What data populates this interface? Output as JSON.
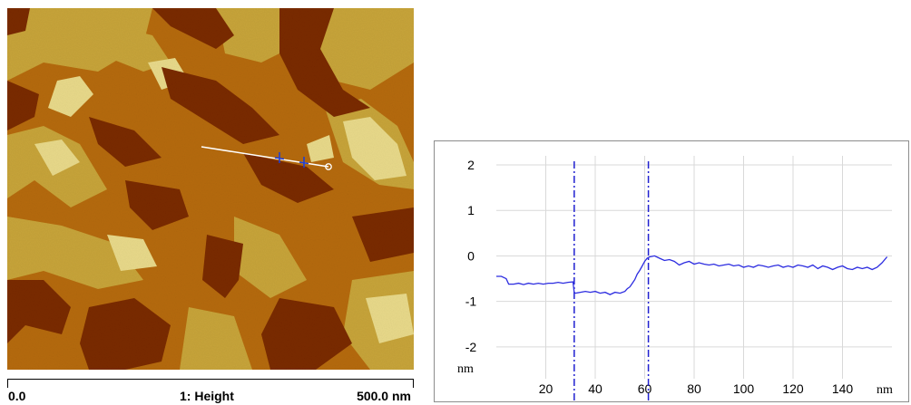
{
  "afm_image": {
    "colors": {
      "dark": "#7a2a02",
      "mid": "#b56a0c",
      "light": "#c7a43a",
      "highlight": "#e8d98a",
      "line": "#ffffff",
      "cursor": "#1f3fd6"
    }
  },
  "scale_bar": {
    "start_label": "0.0",
    "channel_label": "1: Height",
    "end_label": "500.0 nm"
  },
  "chart_data": {
    "type": "line",
    "title": "",
    "xlabel": "nm",
    "ylabel": "nm",
    "xlim": [
      0,
      160
    ],
    "ylim": [
      -2.7,
      2.2
    ],
    "x_ticks": [
      20,
      40,
      60,
      80,
      100,
      120,
      140
    ],
    "y_ticks": [
      2,
      1,
      0,
      -1,
      -2
    ],
    "grid": true,
    "line_color": "#2c2ce0",
    "cursor_color": "#2020d0",
    "cursors": [
      31.5,
      61.5
    ],
    "series": [
      {
        "x": [
          0,
          2,
          4,
          5,
          7,
          9,
          11,
          13,
          15,
          17,
          19,
          21,
          23,
          25,
          27,
          29,
          31,
          31.5,
          32,
          34,
          36,
          38,
          40,
          42,
          44,
          46,
          48,
          50,
          52,
          53,
          54,
          55,
          56,
          57,
          58,
          59,
          60,
          61,
          62,
          64,
          66,
          68,
          70,
          72,
          74,
          76,
          78,
          80,
          82,
          84,
          86,
          88,
          90,
          92,
          94,
          96,
          98,
          100,
          102,
          104,
          106,
          108,
          110,
          112,
          114,
          116,
          118,
          120,
          122,
          124,
          126,
          128,
          130,
          132,
          134,
          136,
          138,
          140,
          142,
          144,
          146,
          148,
          150,
          152,
          154,
          156,
          158
        ],
        "y": [
          -0.45,
          -0.45,
          -0.5,
          -0.62,
          -0.62,
          -0.6,
          -0.63,
          -0.6,
          -0.62,
          -0.6,
          -0.62,
          -0.6,
          -0.6,
          -0.58,
          -0.6,
          -0.58,
          -0.57,
          -0.8,
          -0.82,
          -0.8,
          -0.78,
          -0.8,
          -0.78,
          -0.82,
          -0.8,
          -0.85,
          -0.8,
          -0.82,
          -0.78,
          -0.72,
          -0.68,
          -0.6,
          -0.52,
          -0.4,
          -0.32,
          -0.22,
          -0.12,
          -0.05,
          -0.02,
          0.0,
          -0.05,
          -0.1,
          -0.08,
          -0.12,
          -0.2,
          -0.15,
          -0.12,
          -0.18,
          -0.15,
          -0.18,
          -0.2,
          -0.18,
          -0.22,
          -0.2,
          -0.18,
          -0.22,
          -0.2,
          -0.25,
          -0.22,
          -0.25,
          -0.2,
          -0.22,
          -0.25,
          -0.22,
          -0.2,
          -0.25,
          -0.22,
          -0.25,
          -0.2,
          -0.22,
          -0.25,
          -0.2,
          -0.28,
          -0.22,
          -0.25,
          -0.3,
          -0.25,
          -0.22,
          -0.28,
          -0.3,
          -0.25,
          -0.28,
          -0.25,
          -0.3,
          -0.25,
          -0.15,
          -0.02
        ]
      }
    ]
  }
}
